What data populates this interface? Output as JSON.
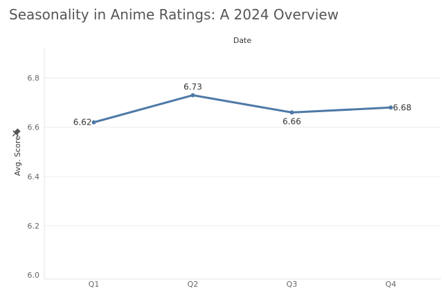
{
  "title": "Seasonality in Anime Ratings: A 2024 Overview",
  "chart_data": {
    "type": "line",
    "title": "Seasonality in Anime Ratings: A 2024 Overview",
    "column_header": "Date",
    "xlabel": "",
    "ylabel": "Avg. Score",
    "ylabel_icon": "pin-icon",
    "categories": [
      "Q1",
      "Q2",
      "Q3",
      "Q4"
    ],
    "series": [
      {
        "values": [
          6.62,
          6.73,
          6.66,
          6.68
        ],
        "value_labels": [
          "6.62",
          "6.73",
          "6.66",
          "6.68"
        ],
        "color": "#4e79a7"
      }
    ],
    "ylim": [
      6.0,
      6.92
    ],
    "yticks": [
      6.0,
      6.2,
      6.4,
      6.6,
      6.8
    ],
    "ytick_labels": [
      "6.0",
      "6.2",
      "6.4",
      "6.6",
      "6.8"
    ],
    "grid": true,
    "legend": "none"
  }
}
